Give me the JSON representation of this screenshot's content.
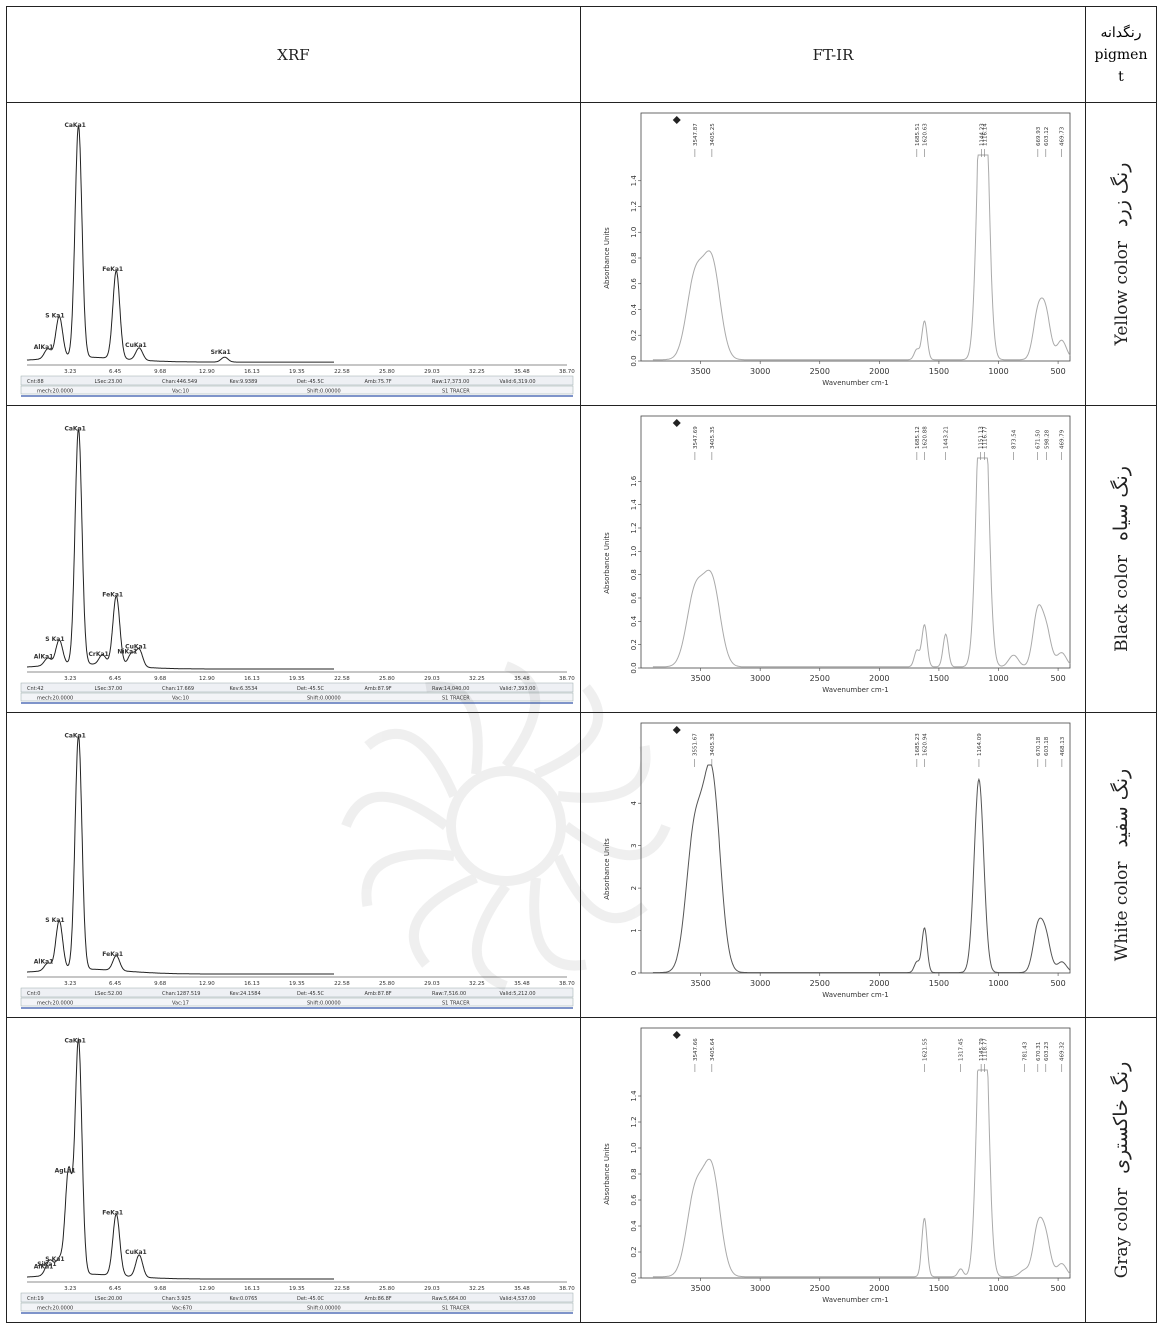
{
  "table": {
    "headers": {
      "xrf": "XRF",
      "ftir": "FT-IR",
      "pigment_fa": "رنگدانه",
      "pigment_en_1": "pigmen",
      "pigment_en_2": "t"
    }
  },
  "rows": [
    {
      "pigment_fa": "رنگ زرد",
      "pigment_en": "Yellow color",
      "xrf": {
        "peaks": [
          {
            "label": "CaKa1",
            "x": 3.69,
            "y": 0.95
          },
          {
            "label": "FeKa1",
            "x": 6.4,
            "y": 0.36
          },
          {
            "label": "S Ka1",
            "x": 2.31,
            "y": 0.17
          },
          {
            "label": "CuKa1",
            "x": 8.04,
            "y": 0.05
          },
          {
            "label": "SrKa1",
            "x": 14.16,
            "y": 0.02
          },
          {
            "label": "AlKa1",
            "x": 1.49,
            "y": 0.04
          }
        ],
        "ticks": [
          "3.23",
          "6.45",
          "9.68",
          "12.90",
          "16.13",
          "19.35",
          "22.58",
          "25.80",
          "29.03",
          "32.25",
          "35.48",
          "38.70"
        ],
        "footer1": [
          "Cnt:88",
          "LSec:23.00",
          "Chan:446.549",
          "Kev:9.9389",
          "Det:-45.5C",
          "Amb:75.7F",
          "Raw:17,373.00",
          "Valid:6,319.00"
        ],
        "footer2": [
          "mech:20.0000",
          "Vac:10",
          "Shift:0.00000",
          "S1 TRACER"
        ]
      },
      "ftir": {
        "ylabel": "Absorbance Units",
        "xlabel": "Wavenumber cm-1",
        "yticks": [
          "0.0",
          "0.2",
          "0.4",
          "0.6",
          "0.8",
          "1.0",
          "1.2",
          "1.4"
        ],
        "ymax": 1.6,
        "peaks": [
          {
            "label": "3547.87",
            "x": 3547.87,
            "y": 0.62
          },
          {
            "label": "3405.25",
            "x": 3405.25,
            "y": 0.74
          },
          {
            "label": "1685.51",
            "x": 1685.51,
            "y": 0.08
          },
          {
            "label": "1620.63",
            "x": 1620.63,
            "y": 0.3
          },
          {
            "label": "1144.23",
            "x": 1144.23,
            "y": 1.48
          },
          {
            "label": "1116.14",
            "x": 1116.14,
            "y": 1.42
          },
          {
            "label": "669.93",
            "x": 669.93,
            "y": 0.34
          },
          {
            "label": "603.12",
            "x": 603.12,
            "y": 0.34
          },
          {
            "label": "469.73",
            "x": 469.73,
            "y": 0.15
          }
        ]
      }
    },
    {
      "pigment_fa": "رنگ سیاه",
      "pigment_en": "Black color",
      "xrf": {
        "peaks": [
          {
            "label": "CaKa1",
            "x": 3.69,
            "y": 0.95
          },
          {
            "label": "FeKa1",
            "x": 6.4,
            "y": 0.28
          },
          {
            "label": "S Ka1",
            "x": 2.31,
            "y": 0.1
          },
          {
            "label": "CuKa1",
            "x": 8.04,
            "y": 0.07
          },
          {
            "label": "NiKa1",
            "x": 7.48,
            "y": 0.05
          },
          {
            "label": "CrKa1",
            "x": 5.41,
            "y": 0.04
          },
          {
            "label": "AlKa1",
            "x": 1.49,
            "y": 0.03
          }
        ],
        "ticks": [
          "3.23",
          "6.45",
          "9.68",
          "12.90",
          "16.13",
          "19.35",
          "22.58",
          "25.80",
          "29.03",
          "32.25",
          "35.48",
          "38.70"
        ],
        "footer1": [
          "Cnt:42",
          "LSec:37.00",
          "Chan:17.669",
          "Kev:6.3534",
          "Det:-45.5C",
          "Amb:87.9F",
          "Raw:14,040.00",
          "Valid:7,393.00"
        ],
        "footer2": [
          "mech:20.0000",
          "Vac:10",
          "Shift:0.00000",
          "S1 TRACER"
        ]
      },
      "ftir": {
        "ylabel": "Absorbance Units",
        "xlabel": "Wavenumber cm-1",
        "yticks": [
          "0.0",
          "0.2",
          "0.4",
          "0.6",
          "0.8",
          "1.0",
          "1.2",
          "1.4",
          "1.6"
        ],
        "ymax": 1.8,
        "peaks": [
          {
            "label": "3547.69",
            "x": 3547.69,
            "y": 0.62
          },
          {
            "label": "3405.35",
            "x": 3405.35,
            "y": 0.72
          },
          {
            "label": "1685.12",
            "x": 1685.12,
            "y": 0.14
          },
          {
            "label": "1620.88",
            "x": 1620.88,
            "y": 0.36
          },
          {
            "label": "1443.21",
            "x": 1443.21,
            "y": 0.28
          },
          {
            "label": "1151.13",
            "x": 1151.13,
            "y": 1.68
          },
          {
            "label": "1116.77",
            "x": 1116.77,
            "y": 1.6
          },
          {
            "label": "873.54",
            "x": 873.54,
            "y": 0.1
          },
          {
            "label": "671.50",
            "x": 671.5,
            "y": 0.46
          },
          {
            "label": "598.28",
            "x": 598.28,
            "y": 0.3
          },
          {
            "label": "469.79",
            "x": 469.79,
            "y": 0.12
          }
        ]
      }
    },
    {
      "pigment_fa": "رنگ سفید",
      "pigment_en": "White color",
      "xrf": {
        "peaks": [
          {
            "label": "CaKa1",
            "x": 3.69,
            "y": 0.95
          },
          {
            "label": "S Ka1",
            "x": 2.31,
            "y": 0.2
          },
          {
            "label": "FeKa1",
            "x": 6.4,
            "y": 0.06
          },
          {
            "label": "AlKa1",
            "x": 1.49,
            "y": 0.03
          }
        ],
        "ticks": [
          "3.23",
          "6.45",
          "9.68",
          "12.90",
          "16.13",
          "19.35",
          "22.58",
          "25.80",
          "29.03",
          "32.25",
          "35.48",
          "38.70"
        ],
        "footer1": [
          "Cnt:0",
          "LSec:52.00",
          "Chan:1287.519",
          "Kev:24.1584",
          "Det:-45.5C",
          "Amb:87.8F",
          "Raw:7,516.00",
          "Valid:5,212.00"
        ],
        "footer2": [
          "mech:20.0000",
          "Vac:17",
          "Shift:0.00000",
          "S1 TRACER"
        ]
      },
      "ftir": {
        "ylabel": "Absorbance Units",
        "xlabel": "Wavenumber cm-1",
        "yticks": [
          "0",
          "1",
          "2",
          "3",
          "4"
        ],
        "ymax": 4.9,
        "peaks": [
          {
            "label": "3551.67",
            "x": 3551.67,
            "y": 3.2
          },
          {
            "label": "3405.38",
            "x": 3405.38,
            "y": 4.5
          },
          {
            "label": "1685.23",
            "x": 1685.23,
            "y": 0.25
          },
          {
            "label": "1620.94",
            "x": 1620.94,
            "y": 1.05
          },
          {
            "label": "1164.09",
            "x": 1164.09,
            "y": 4.55
          },
          {
            "label": "670.18",
            "x": 670.18,
            "y": 1.0
          },
          {
            "label": "603.18",
            "x": 603.18,
            "y": 0.8
          },
          {
            "label": "468.13",
            "x": 468.13,
            "y": 0.25
          }
        ]
      }
    },
    {
      "pigment_fa": "رنگ خاکستری",
      "pigment_en": "Gray color",
      "xrf": {
        "peaks": [
          {
            "label": "CaKa1",
            "x": 3.69,
            "y": 0.95
          },
          {
            "label": "AgLa1",
            "x": 2.98,
            "y": 0.42
          },
          {
            "label": "FeKa1",
            "x": 6.4,
            "y": 0.25
          },
          {
            "label": "CuKa1",
            "x": 8.04,
            "y": 0.09
          },
          {
            "label": "S Ka1",
            "x": 2.31,
            "y": 0.06
          },
          {
            "label": "SiKa1",
            "x": 1.74,
            "y": 0.04
          },
          {
            "label": "AlKa1",
            "x": 1.49,
            "y": 0.03
          }
        ],
        "ticks": [
          "3.23",
          "6.45",
          "9.68",
          "12.90",
          "16.13",
          "19.35",
          "22.58",
          "25.80",
          "29.03",
          "32.25",
          "35.48",
          "38.70"
        ],
        "footer1": [
          "Cnt:19",
          "LSec:20.00",
          "Chan:3.925",
          "Kev:0.0765",
          "Det:-45.0C",
          "Amb:86.8F",
          "Raw:5,664.00",
          "Valid:4,537.00"
        ],
        "footer2": [
          "mech:20.0000",
          "Vac:670",
          "Shift:0.00000",
          "S1 TRACER"
        ]
      },
      "ftir": {
        "ylabel": "Absorbance Units",
        "xlabel": "Wavenumber cm-1",
        "yticks": [
          "0.0",
          "0.2",
          "0.4",
          "0.6",
          "0.8",
          "1.0",
          "1.2",
          "1.4"
        ],
        "ymax": 1.6,
        "peaks": [
          {
            "label": "3547.66",
            "x": 3547.66,
            "y": 0.62
          },
          {
            "label": "3405.64",
            "x": 3405.64,
            "y": 0.8
          },
          {
            "label": "1621.55",
            "x": 1621.55,
            "y": 0.45
          },
          {
            "label": "1317.45",
            "x": 1317.45,
            "y": 0.06
          },
          {
            "label": "1145.79",
            "x": 1145.79,
            "y": 1.44
          },
          {
            "label": "1118.77",
            "x": 1118.77,
            "y": 1.36
          },
          {
            "label": "781.43",
            "x": 781.43,
            "y": 0.05
          },
          {
            "label": "670.31",
            "x": 670.31,
            "y": 0.36
          },
          {
            "label": "603.23",
            "x": 603.23,
            "y": 0.28
          },
          {
            "label": "469.32",
            "x": 469.32,
            "y": 0.1
          }
        ]
      }
    }
  ],
  "ftir_xticks": [
    "3500",
    "3000",
    "2500",
    "2000",
    "1500",
    "1000",
    "500"
  ],
  "chart_data": [
    {
      "type": "line",
      "name": "XRF Yellow",
      "xlim": [
        0,
        38.7
      ],
      "x": [
        3.69,
        6.4,
        2.31,
        8.04,
        14.16,
        1.49
      ],
      "values": [
        0.95,
        0.36,
        0.17,
        0.05,
        0.02,
        0.04
      ]
    },
    {
      "type": "line",
      "name": "FT-IR Yellow",
      "xlim": [
        4000,
        400
      ],
      "ylim": [
        0,
        1.6
      ],
      "ylabel": "Absorbance Units",
      "xlabel": "Wavenumber cm-1",
      "x": [
        3547.87,
        3405.25,
        1685.51,
        1620.63,
        1144.23,
        1116.14,
        669.93,
        603.12,
        469.73
      ],
      "values": [
        0.62,
        0.74,
        0.08,
        0.3,
        1.48,
        1.42,
        0.34,
        0.34,
        0.15
      ]
    },
    {
      "type": "line",
      "name": "XRF Black",
      "xlim": [
        0,
        38.7
      ],
      "x": [
        3.69,
        6.4,
        2.31,
        8.04,
        7.48,
        5.41,
        1.49
      ],
      "values": [
        0.95,
        0.28,
        0.1,
        0.07,
        0.05,
        0.04,
        0.03
      ]
    },
    {
      "type": "line",
      "name": "FT-IR Black",
      "xlim": [
        4000,
        400
      ],
      "ylim": [
        0,
        1.8
      ],
      "ylabel": "Absorbance Units",
      "xlabel": "Wavenumber cm-1",
      "x": [
        3547.69,
        3405.35,
        1685.12,
        1620.88,
        1443.21,
        1151.13,
        1116.77,
        873.54,
        671.5,
        598.28,
        469.79
      ],
      "values": [
        0.62,
        0.72,
        0.14,
        0.36,
        0.28,
        1.68,
        1.6,
        0.1,
        0.46,
        0.3,
        0.12
      ]
    },
    {
      "type": "line",
      "name": "XRF White",
      "xlim": [
        0,
        38.7
      ],
      "x": [
        3.69,
        2.31,
        6.4,
        1.49
      ],
      "values": [
        0.95,
        0.2,
        0.06,
        0.03
      ]
    },
    {
      "type": "line",
      "name": "FT-IR White",
      "xlim": [
        4000,
        400
      ],
      "ylim": [
        0,
        4.9
      ],
      "ylabel": "Absorbance Units",
      "xlabel": "Wavenumber cm-1",
      "x": [
        3551.67,
        3405.38,
        1685.23,
        1620.94,
        1164.09,
        670.18,
        603.18,
        468.13
      ],
      "values": [
        3.2,
        4.5,
        0.25,
        1.05,
        4.55,
        1.0,
        0.8,
        0.25
      ]
    },
    {
      "type": "line",
      "name": "XRF Gray",
      "xlim": [
        0,
        38.7
      ],
      "x": [
        3.69,
        2.98,
        6.4,
        8.04,
        2.31,
        1.74,
        1.49
      ],
      "values": [
        0.95,
        0.42,
        0.25,
        0.09,
        0.06,
        0.04,
        0.03
      ]
    },
    {
      "type": "line",
      "name": "FT-IR Gray",
      "xlim": [
        4000,
        400
      ],
      "ylim": [
        0,
        1.6
      ],
      "ylabel": "Absorbance Units",
      "xlabel": "Wavenumber cm-1",
      "x": [
        3547.66,
        3405.64,
        1621.55,
        1317.45,
        1145.79,
        1118.77,
        781.43,
        670.31,
        603.23,
        469.32
      ],
      "values": [
        0.62,
        0.8,
        0.45,
        0.06,
        1.44,
        1.36,
        0.05,
        0.36,
        0.28,
        0.1
      ]
    }
  ]
}
